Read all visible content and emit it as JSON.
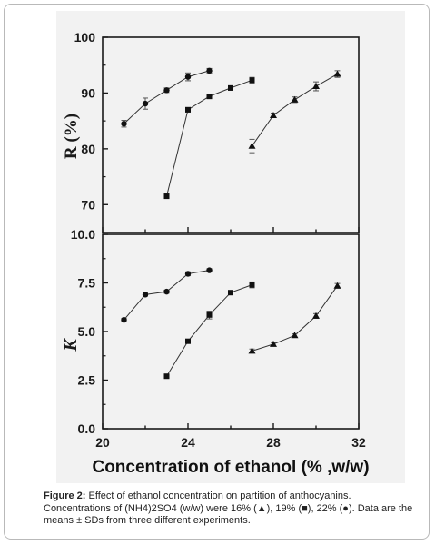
{
  "chart_data": [
    {
      "type": "line",
      "panel": "top",
      "ylabel": "R (%)",
      "ylim": [
        65,
        100
      ],
      "yticks": [
        "70",
        "80",
        "90",
        "100"
      ],
      "xlim": [
        20,
        32
      ],
      "grid": false,
      "series": [
        {
          "marker": "circle",
          "x": [
            21,
            22,
            23,
            24,
            25
          ],
          "y": [
            84.5,
            88.1,
            90.5,
            92.9,
            94.0
          ],
          "err": [
            0.6,
            1.0,
            0.4,
            0.7,
            0.4
          ]
        },
        {
          "marker": "square",
          "x": [
            23,
            24,
            25,
            26,
            27
          ],
          "y": [
            71.5,
            87.0,
            89.4,
            90.9,
            92.3
          ],
          "err": [
            0.4,
            0.4,
            0.4,
            0.4,
            0.5
          ]
        },
        {
          "marker": "triangle",
          "x": [
            27,
            28,
            29,
            30,
            31
          ],
          "y": [
            80.5,
            86.0,
            88.8,
            91.2,
            93.4
          ],
          "err": [
            1.2,
            0.4,
            0.5,
            0.8,
            0.6
          ]
        }
      ]
    },
    {
      "type": "line",
      "panel": "bottom",
      "ylabel": "K",
      "ylim": [
        0,
        10
      ],
      "yticks": [
        "0.0",
        "2.5",
        "5.0",
        "7.5",
        "10.0"
      ],
      "xlim": [
        20,
        32
      ],
      "xticks": [
        "20",
        "24",
        "28",
        "32"
      ],
      "xlabel": "Concentration of ethanol (% ,w/w)",
      "grid": false,
      "series": [
        {
          "marker": "circle",
          "x": [
            21,
            22,
            23,
            24,
            25
          ],
          "y": [
            5.6,
            6.9,
            7.05,
            7.97,
            8.15
          ],
          "err": [
            0.08,
            0.08,
            0.08,
            0.1,
            0.08
          ]
        },
        {
          "marker": "square",
          "x": [
            23,
            24,
            25,
            26,
            27
          ],
          "y": [
            2.7,
            4.5,
            5.85,
            7.0,
            7.4
          ],
          "err": [
            0.05,
            0.08,
            0.2,
            0.08,
            0.15
          ]
        },
        {
          "marker": "triangle",
          "x": [
            27,
            28,
            29,
            30,
            31
          ],
          "y": [
            4.0,
            4.35,
            4.8,
            5.8,
            7.35
          ],
          "err": [
            0.1,
            0.08,
            0.08,
            0.12,
            0.12
          ]
        }
      ]
    }
  ],
  "caption": {
    "label": "Figure 2:",
    "text": " Effect of ethanol concentration on partition of anthocyanins. Concentrations of (NH4)2SO4 (w/w) were 16% (▲), 19% (■), 22% (●). Data are the means ± SDs from three different experiments."
  },
  "colors": {
    "panel": "#f2f2f2",
    "ink": "#1a1a1a",
    "marker": "#111111"
  }
}
